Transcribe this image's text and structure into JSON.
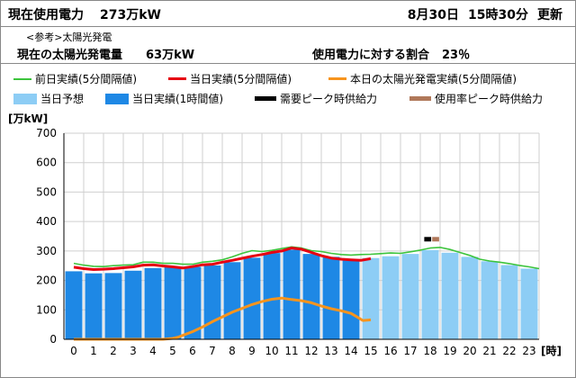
{
  "header": {
    "usage_label": "現在使用電力",
    "usage_value": "273万kW",
    "date": "8月30日",
    "time": "15時30分",
    "update": "更新"
  },
  "solar": {
    "note": "<参考>太陽光発電",
    "label": "現在の太陽光発電量",
    "value": "63万kW",
    "ratio_label": "使用電力に対する割合",
    "ratio_value": "23％"
  },
  "colors": {
    "prev_day": "#3cc43c",
    "today_5min": "#e60012",
    "solar": "#f7941d",
    "forecast": "#8dcdf5",
    "today_hourly": "#1e88e5",
    "demand_peak": "#000000",
    "usage_peak": "#b0785a",
    "grid": "#cfcfcf"
  },
  "chart_data": {
    "type": "bar",
    "y_unit": "[万kW]",
    "x_unit": "[時]",
    "ylim": [
      0,
      700
    ],
    "y_ticks": [
      "0",
      "100",
      "200",
      "300",
      "400",
      "500",
      "600",
      "700"
    ],
    "categories": [
      "0",
      "1",
      "2",
      "3",
      "4",
      "5",
      "6",
      "7",
      "8",
      "9",
      "10",
      "11",
      "12",
      "13",
      "14",
      "15",
      "16",
      "17",
      "18",
      "19",
      "20",
      "21",
      "22",
      "23"
    ],
    "grid": true,
    "legend": [
      {
        "key": "prev_day",
        "label": "前日実績(5分間隔値)",
        "kind": "line"
      },
      {
        "key": "today_5min",
        "label": "当日実績(5分間隔値)",
        "kind": "line"
      },
      {
        "key": "solar",
        "label": "本日の太陽光発電実績(5分間隔値)",
        "kind": "line"
      },
      {
        "key": "forecast",
        "label": "当日予想",
        "kind": "box"
      },
      {
        "key": "today_hourly",
        "label": "当日実績(1時間値)",
        "kind": "box"
      },
      {
        "key": "demand_peak",
        "label": "需要ピーク時供給力",
        "kind": "bar"
      },
      {
        "key": "usage_peak",
        "label": "使用率ピーク時供給力",
        "kind": "bar"
      }
    ],
    "series": [
      {
        "key": "today_hourly",
        "values": [
          231,
          224,
          225,
          233,
          242,
          245,
          246,
          251,
          262,
          277,
          293,
          304,
          290,
          280,
          271,
          null,
          null,
          null,
          null,
          null,
          null,
          null,
          null,
          null
        ]
      },
      {
        "key": "forecast",
        "values": [
          null,
          null,
          null,
          null,
          null,
          null,
          null,
          null,
          null,
          null,
          null,
          null,
          null,
          null,
          null,
          276,
          282,
          290,
          303,
          294,
          280,
          265,
          252,
          240
        ]
      },
      {
        "key": "prev_day",
        "points": [
          [
            0,
            258
          ],
          [
            0.5,
            252
          ],
          [
            1,
            248
          ],
          [
            1.5,
            247
          ],
          [
            2,
            250
          ],
          [
            2.5,
            252
          ],
          [
            3,
            253
          ],
          [
            3.5,
            262
          ],
          [
            4,
            262
          ],
          [
            4.5,
            258
          ],
          [
            5,
            258
          ],
          [
            5.5,
            255
          ],
          [
            6,
            255
          ],
          [
            6.5,
            262
          ],
          [
            7,
            265
          ],
          [
            7.5,
            270
          ],
          [
            8,
            280
          ],
          [
            8.5,
            292
          ],
          [
            9,
            301
          ],
          [
            9.5,
            298
          ],
          [
            10,
            302
          ],
          [
            10.5,
            308
          ],
          [
            11,
            314
          ],
          [
            11.5,
            310
          ],
          [
            12,
            301
          ],
          [
            12.5,
            298
          ],
          [
            13,
            292
          ],
          [
            13.5,
            288
          ],
          [
            14,
            286
          ],
          [
            14.5,
            288
          ],
          [
            15,
            289
          ],
          [
            15.5,
            291
          ],
          [
            16,
            293
          ],
          [
            16.5,
            292
          ],
          [
            17,
            297
          ],
          [
            17.5,
            303
          ],
          [
            18,
            310
          ],
          [
            18.5,
            312
          ],
          [
            19,
            305
          ],
          [
            19.5,
            295
          ],
          [
            20,
            285
          ],
          [
            20.5,
            272
          ],
          [
            21,
            266
          ],
          [
            21.5,
            262
          ],
          [
            22,
            257
          ],
          [
            22.5,
            251
          ],
          [
            23,
            246
          ],
          [
            23.5,
            240
          ]
        ]
      },
      {
        "key": "today_5min",
        "points": [
          [
            0,
            245
          ],
          [
            0.5,
            240
          ],
          [
            1,
            237
          ],
          [
            1.5,
            238
          ],
          [
            2,
            240
          ],
          [
            2.5,
            243
          ],
          [
            3,
            246
          ],
          [
            3.5,
            252
          ],
          [
            4,
            253
          ],
          [
            4.5,
            249
          ],
          [
            5,
            246
          ],
          [
            5.5,
            242
          ],
          [
            6,
            247
          ],
          [
            6.5,
            253
          ],
          [
            7,
            255
          ],
          [
            7.5,
            262
          ],
          [
            8,
            268
          ],
          [
            8.5,
            275
          ],
          [
            9,
            282
          ],
          [
            9.5,
            288
          ],
          [
            10,
            295
          ],
          [
            10.5,
            300
          ],
          [
            11,
            310
          ],
          [
            11.5,
            306
          ],
          [
            12,
            295
          ],
          [
            12.5,
            284
          ],
          [
            13,
            276
          ],
          [
            13.5,
            272
          ],
          [
            14,
            270
          ],
          [
            14.5,
            268
          ],
          [
            15,
            274
          ]
        ]
      },
      {
        "key": "solar",
        "points": [
          [
            0,
            0
          ],
          [
            3,
            0
          ],
          [
            4,
            0
          ],
          [
            4.5,
            0
          ],
          [
            5,
            3
          ],
          [
            5.3,
            8
          ],
          [
            5.6,
            16
          ],
          [
            6,
            26
          ],
          [
            6.5,
            42
          ],
          [
            7,
            60
          ],
          [
            7.5,
            76
          ],
          [
            8,
            92
          ],
          [
            8.5,
            105
          ],
          [
            9,
            118
          ],
          [
            9.5,
            128
          ],
          [
            10,
            136
          ],
          [
            10.5,
            140
          ],
          [
            11,
            135
          ],
          [
            11.5,
            131
          ],
          [
            12,
            124
          ],
          [
            12.5,
            113
          ],
          [
            13,
            104
          ],
          [
            13.5,
            97
          ],
          [
            14,
            88
          ],
          [
            14.3,
            76
          ],
          [
            14.6,
            64
          ],
          [
            15,
            66
          ]
        ]
      },
      {
        "key": "demand_peak",
        "points": [
          [
            17.7,
            340
          ],
          [
            18.05,
            340
          ]
        ]
      },
      {
        "key": "usage_peak",
        "points": [
          [
            18.1,
            340
          ],
          [
            18.45,
            340
          ]
        ]
      }
    ]
  }
}
